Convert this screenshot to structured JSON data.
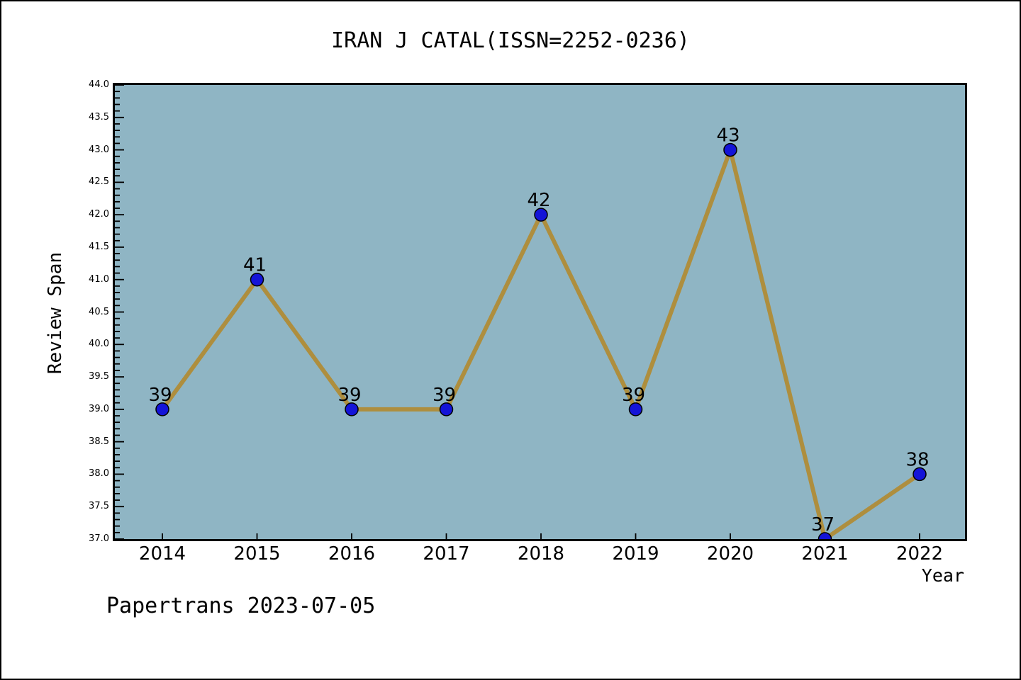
{
  "title": "IRAN J CATAL(ISSN=2252-0236)",
  "footer": "Papertrans 2023-07-05",
  "chart_data": {
    "type": "line",
    "title": "IRAN J CATAL(ISSN=2252-0236)",
    "xlabel": "Year",
    "ylabel": "Review Span",
    "categories": [
      2014,
      2015,
      2016,
      2017,
      2018,
      2019,
      2020,
      2021,
      2022
    ],
    "values": [
      39,
      41,
      39,
      39,
      42,
      39,
      43,
      37,
      38
    ],
    "point_labels": [
      "39",
      "41",
      "39",
      "39",
      "42",
      "39",
      "43",
      "37",
      "38"
    ],
    "ylim": [
      37.0,
      44.0
    ],
    "ytick_step": 0.5,
    "y_minor_step": 0.1,
    "ytick_labels": [
      "37.0",
      "37.5",
      "38.0",
      "38.5",
      "39.0",
      "39.5",
      "40.0",
      "40.5",
      "41.0",
      "41.5",
      "42.0",
      "42.5",
      "43.0",
      "43.5",
      "44.0"
    ],
    "grid": false,
    "legend": "none",
    "colors": {
      "plot_background": "#8FB5C4",
      "line": "#AE8E3E",
      "marker_fill": "#1414D8",
      "marker_edge": "#000000",
      "text": "#000000",
      "axis": "#000000"
    }
  }
}
